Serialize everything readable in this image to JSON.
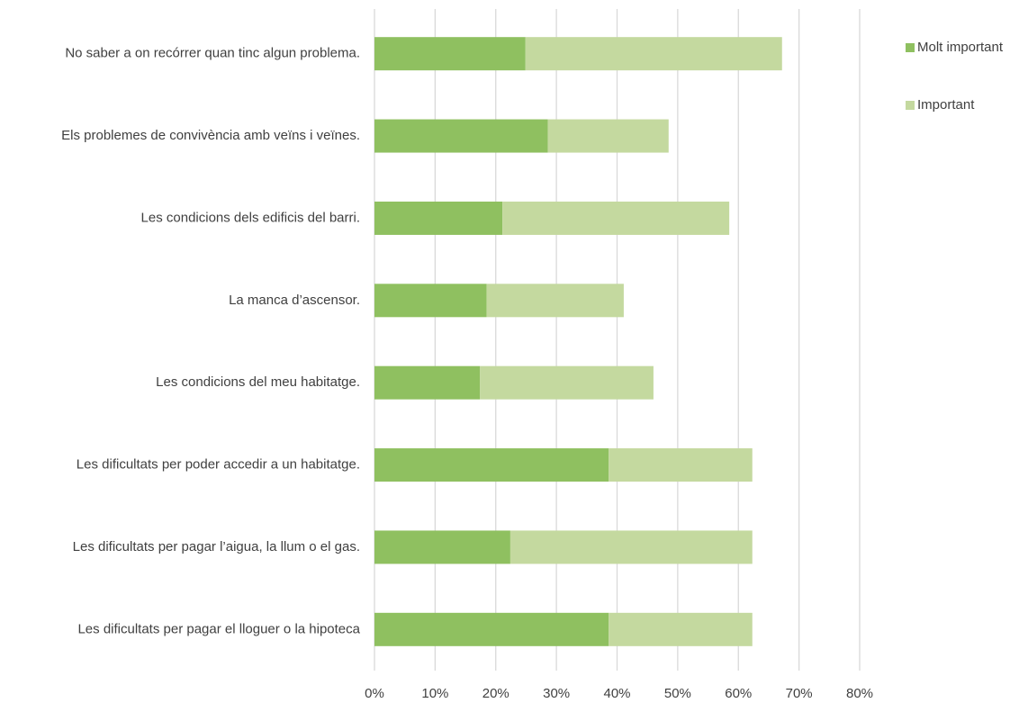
{
  "chart_data": {
    "type": "stacked-bar-horizontal",
    "categories": [
      "No saber a on recórrer quan tinc algun problema.",
      "Els problemes de convivència amb veïns i veïnes.",
      "Les condicions dels edificis del barri.",
      "La manca d’ascensor.",
      "Les condicions del meu habitatge.",
      "Les dificultats per poder accedir a un habitatge.",
      "Les dificultats per pagar l’aigua, la llum o el gas.",
      "Les dificultats per pagar el lloguer o la hipoteca"
    ],
    "series": [
      {
        "name": "Molt important",
        "color": "#8fc060",
        "values": [
          24.9,
          28.6,
          21.1,
          18.5,
          17.4,
          38.6,
          22.4,
          38.6
        ]
      },
      {
        "name": "Important",
        "color": "#c4d99f",
        "values": [
          42.3,
          19.9,
          37.4,
          22.6,
          28.6,
          23.7,
          39.9,
          23.7
        ]
      }
    ],
    "xlim": [
      0,
      80
    ],
    "xticks": [
      {
        "value": 0,
        "label": "0%"
      },
      {
        "value": 10,
        "label": "10%"
      },
      {
        "value": 20,
        "label": "20%"
      },
      {
        "value": 30,
        "label": "30%"
      },
      {
        "value": 40,
        "label": "40%"
      },
      {
        "value": 50,
        "label": "50%"
      },
      {
        "value": 60,
        "label": "60%"
      },
      {
        "value": 70,
        "label": "70%"
      },
      {
        "value": 80,
        "label": "80%"
      }
    ],
    "grid": true,
    "legend": "right"
  }
}
